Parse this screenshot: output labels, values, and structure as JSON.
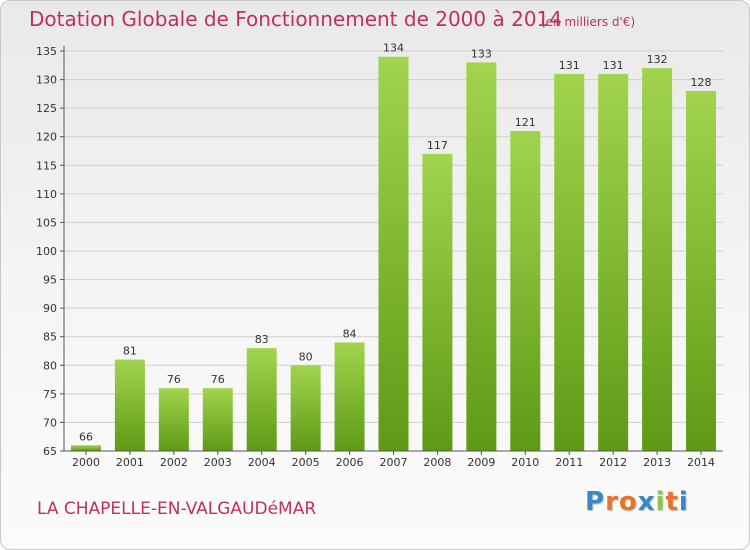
{
  "header": {
    "title": "Dotation Globale de Fonctionnement de 2000 à 2014",
    "unit_note": "(en milliers d'€)"
  },
  "footer": {
    "commune": "LA CHAPELLE-EN-VALGAUDéMAR",
    "logo": "Proxiti",
    "logo_colors": [
      "#3a86c8",
      "#e8742a",
      "#e8742a",
      "#3a86c8",
      "#8cc63f",
      "#e8742a",
      "#3a86c8"
    ]
  },
  "colors": {
    "title": "#c0305a",
    "bar_top": "#a2d44e",
    "bar_bottom": "#5e9a16",
    "grid": "#cfcfcf",
    "axis": "#555555",
    "text": "#333333"
  },
  "chart_data": {
    "type": "bar",
    "categories": [
      "2000",
      "2001",
      "2002",
      "2003",
      "2004",
      "2005",
      "2006",
      "2007",
      "2008",
      "2009",
      "2010",
      "2011",
      "2012",
      "2013",
      "2014"
    ],
    "values": [
      66,
      81,
      76,
      76,
      83,
      80,
      84,
      134,
      117,
      133,
      121,
      131,
      131,
      132,
      128
    ],
    "ylim": [
      65,
      135
    ],
    "yticks": [
      65,
      70,
      75,
      80,
      85,
      90,
      95,
      100,
      105,
      110,
      115,
      120,
      125,
      130,
      135
    ],
    "grid": true,
    "data_labels": true
  }
}
